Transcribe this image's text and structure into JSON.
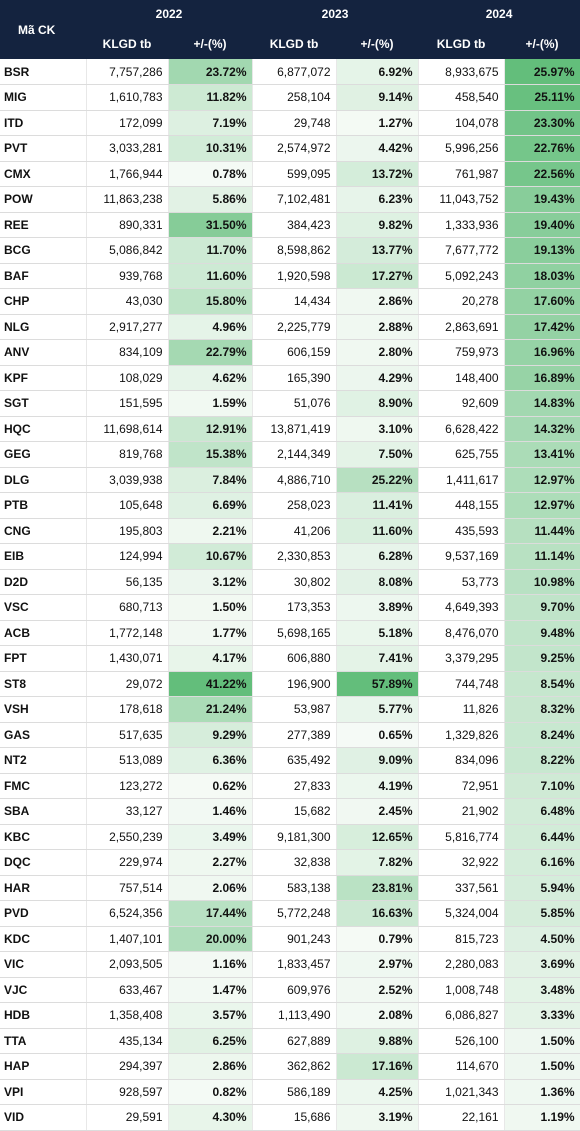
{
  "header": {
    "symbol_label": "Mã CK",
    "years": [
      "2022",
      "2023",
      "2024"
    ],
    "volume_label": "KLGD tb",
    "change_label": "+/-(%)"
  },
  "rows": [
    [
      "BSR",
      "7,757,286",
      "23.72%",
      "6,877,072",
      "6.92%",
      "8,933,675",
      "25.97%"
    ],
    [
      "MIG",
      "1,610,783",
      "11.82%",
      "258,104",
      "9.14%",
      "458,540",
      "25.11%"
    ],
    [
      "ITD",
      "172,099",
      "7.19%",
      "29,748",
      "1.27%",
      "104,078",
      "23.30%"
    ],
    [
      "PVT",
      "3,033,281",
      "10.31%",
      "2,574,972",
      "4.42%",
      "5,996,256",
      "22.76%"
    ],
    [
      "CMX",
      "1,766,944",
      "0.78%",
      "599,095",
      "13.72%",
      "761,987",
      "22.56%"
    ],
    [
      "POW",
      "11,863,238",
      "5.86%",
      "7,102,481",
      "6.23%",
      "11,043,752",
      "19.43%"
    ],
    [
      "REE",
      "890,331",
      "31.50%",
      "384,423",
      "9.82%",
      "1,333,936",
      "19.40%"
    ],
    [
      "BCG",
      "5,086,842",
      "11.70%",
      "8,598,862",
      "13.77%",
      "7,677,772",
      "19.13%"
    ],
    [
      "BAF",
      "939,768",
      "11.60%",
      "1,920,598",
      "17.27%",
      "5,092,243",
      "18.03%"
    ],
    [
      "CHP",
      "43,030",
      "15.80%",
      "14,434",
      "2.86%",
      "20,278",
      "17.60%"
    ],
    [
      "NLG",
      "2,917,277",
      "4.96%",
      "2,225,779",
      "2.88%",
      "2,863,691",
      "17.42%"
    ],
    [
      "ANV",
      "834,109",
      "22.79%",
      "606,159",
      "2.80%",
      "759,973",
      "16.96%"
    ],
    [
      "KPF",
      "108,029",
      "4.62%",
      "165,390",
      "4.29%",
      "148,400",
      "16.89%"
    ],
    [
      "SGT",
      "151,595",
      "1.59%",
      "51,076",
      "8.90%",
      "92,609",
      "14.83%"
    ],
    [
      "HQC",
      "11,698,614",
      "12.91%",
      "13,871,419",
      "3.10%",
      "6,628,422",
      "14.32%"
    ],
    [
      "GEG",
      "819,768",
      "15.38%",
      "2,144,349",
      "7.50%",
      "625,755",
      "13.41%"
    ],
    [
      "DLG",
      "3,039,938",
      "7.84%",
      "4,886,710",
      "25.22%",
      "1,411,617",
      "12.97%"
    ],
    [
      "PTB",
      "105,648",
      "6.69%",
      "258,023",
      "11.41%",
      "448,155",
      "12.97%"
    ],
    [
      "CNG",
      "195,803",
      "2.21%",
      "41,206",
      "11.60%",
      "435,593",
      "11.44%"
    ],
    [
      "EIB",
      "124,994",
      "10.67%",
      "2,330,853",
      "6.28%",
      "9,537,169",
      "11.14%"
    ],
    [
      "D2D",
      "56,135",
      "3.12%",
      "30,802",
      "8.08%",
      "53,773",
      "10.98%"
    ],
    [
      "VSC",
      "680,713",
      "1.50%",
      "173,353",
      "3.89%",
      "4,649,393",
      "9.70%"
    ],
    [
      "ACB",
      "1,772,148",
      "1.77%",
      "5,698,165",
      "5.18%",
      "8,476,070",
      "9.48%"
    ],
    [
      "FPT",
      "1,430,071",
      "4.17%",
      "606,880",
      "7.41%",
      "3,379,295",
      "9.25%"
    ],
    [
      "ST8",
      "29,072",
      "41.22%",
      "196,900",
      "57.89%",
      "744,748",
      "8.54%"
    ],
    [
      "VSH",
      "178,618",
      "21.24%",
      "53,987",
      "5.77%",
      "11,826",
      "8.32%"
    ],
    [
      "GAS",
      "517,635",
      "9.29%",
      "277,389",
      "0.65%",
      "1,329,826",
      "8.24%"
    ],
    [
      "NT2",
      "513,089",
      "6.36%",
      "635,492",
      "9.09%",
      "834,096",
      "8.22%"
    ],
    [
      "FMC",
      "123,272",
      "0.62%",
      "27,833",
      "4.19%",
      "72,951",
      "7.10%"
    ],
    [
      "SBA",
      "33,127",
      "1.46%",
      "15,682",
      "2.45%",
      "21,902",
      "6.48%"
    ],
    [
      "KBC",
      "2,550,239",
      "3.49%",
      "9,181,300",
      "12.65%",
      "5,816,774",
      "6.44%"
    ],
    [
      "DQC",
      "229,974",
      "2.27%",
      "32,838",
      "7.82%",
      "32,922",
      "6.16%"
    ],
    [
      "HAR",
      "757,514",
      "2.06%",
      "583,138",
      "23.81%",
      "337,561",
      "5.94%"
    ],
    [
      "PVD",
      "6,524,356",
      "17.44%",
      "5,772,248",
      "16.63%",
      "5,324,004",
      "5.85%"
    ],
    [
      "KDC",
      "1,407,101",
      "20.00%",
      "901,243",
      "0.79%",
      "815,723",
      "4.50%"
    ],
    [
      "VIC",
      "2,093,505",
      "1.16%",
      "1,833,457",
      "2.97%",
      "2,280,083",
      "3.69%"
    ],
    [
      "VJC",
      "633,467",
      "1.47%",
      "609,976",
      "2.52%",
      "1,008,748",
      "3.48%"
    ],
    [
      "HDB",
      "1,358,408",
      "3.57%",
      "1,113,490",
      "2.08%",
      "6,086,827",
      "3.33%"
    ],
    [
      "TTA",
      "435,134",
      "6.25%",
      "627,889",
      "9.88%",
      "526,100",
      "1.50%"
    ],
    [
      "HAP",
      "294,397",
      "2.86%",
      "362,862",
      "17.16%",
      "114,670",
      "1.50%"
    ],
    [
      "VPI",
      "928,597",
      "0.82%",
      "586,189",
      "4.25%",
      "1,021,343",
      "1.36%"
    ],
    [
      "VID",
      "29,591",
      "4.30%",
      "15,686",
      "3.19%",
      "22,161",
      "1.19%"
    ]
  ]
}
